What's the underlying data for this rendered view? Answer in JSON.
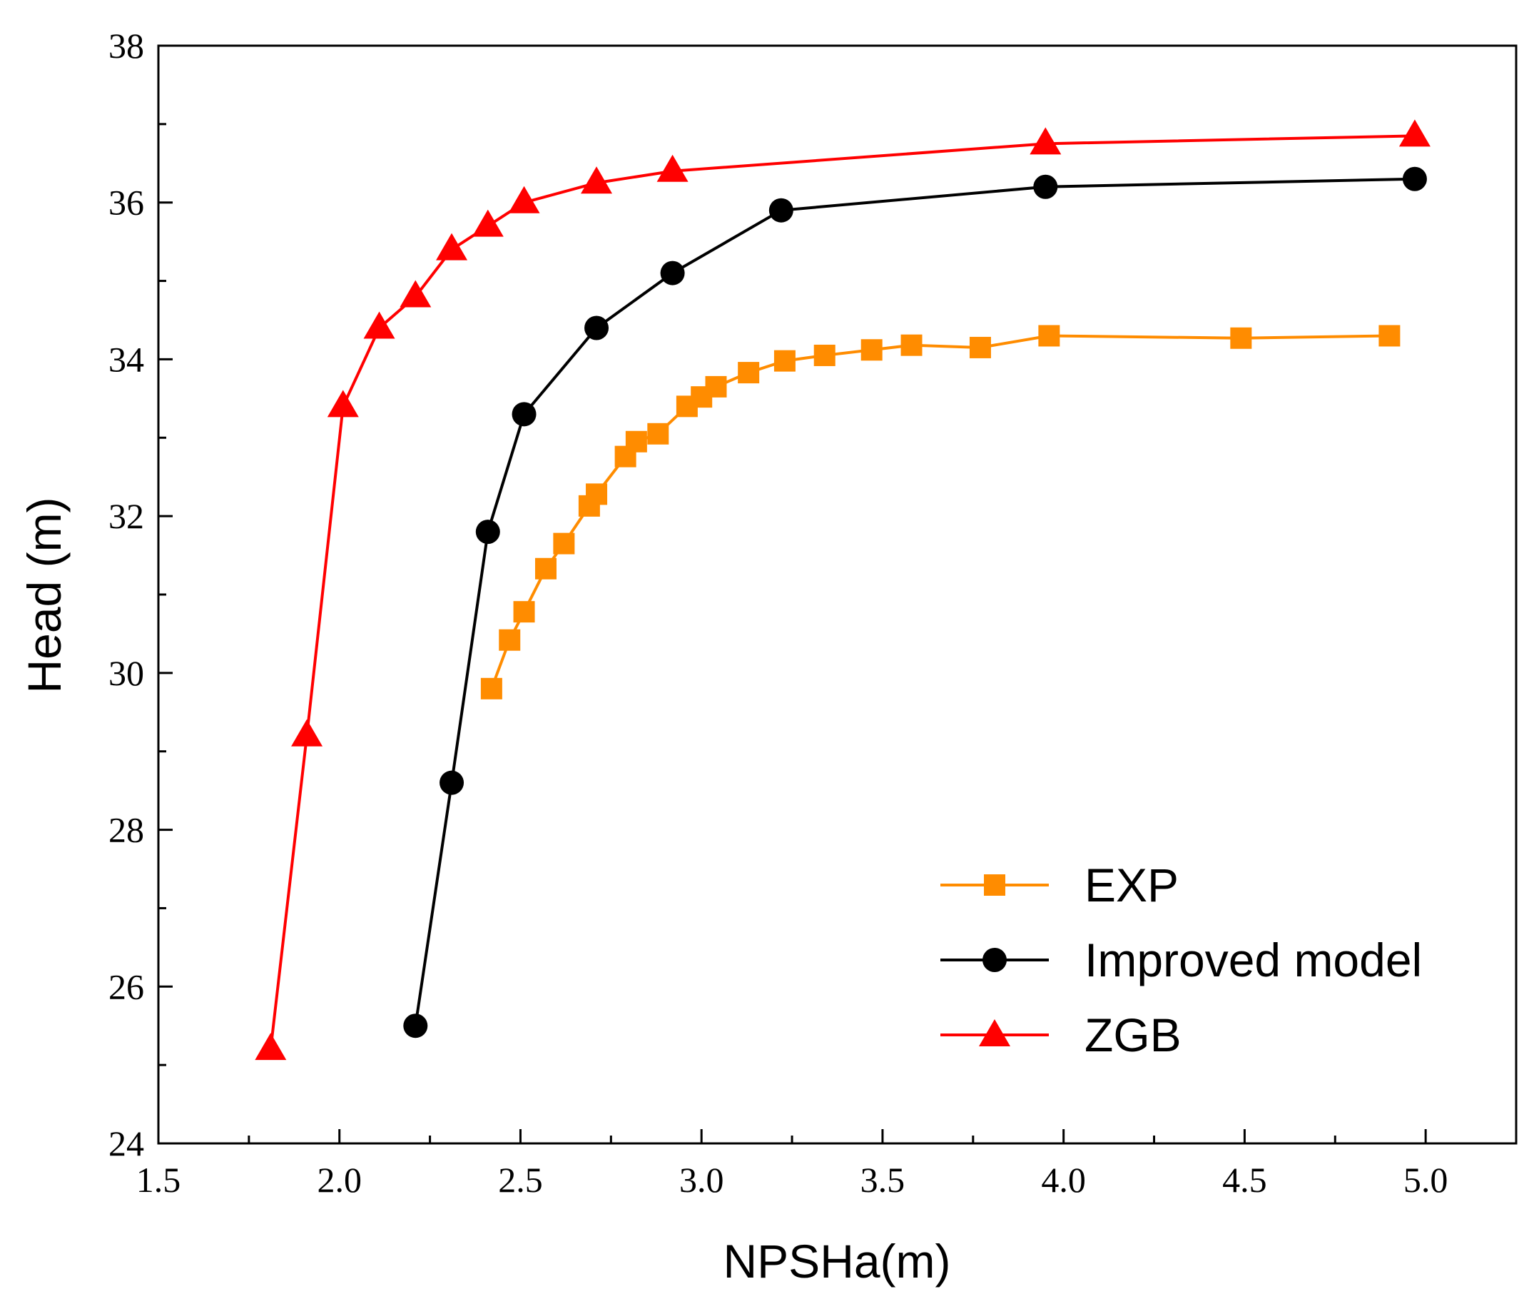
{
  "chart_data": {
    "type": "line",
    "title": "",
    "xlabel": "NPSHa(m)",
    "ylabel": "Head (m)",
    "xlim": [
      1.5,
      5.25
    ],
    "ylim": [
      24,
      38
    ],
    "x_ticks": [
      1.5,
      2.0,
      2.5,
      3.0,
      3.5,
      4.0,
      4.5,
      5.0
    ],
    "x_tick_labels": [
      "1.5",
      "2.0",
      "2.5",
      "3.0",
      "3.5",
      "4.0",
      "4.5",
      "5.0"
    ],
    "y_ticks": [
      24,
      26,
      28,
      30,
      32,
      34,
      36,
      38
    ],
    "y_tick_labels": [
      "24",
      "26",
      "28",
      "30",
      "32",
      "34",
      "36",
      "38"
    ],
    "grid": false,
    "legend_position": "bottom-right",
    "series": [
      {
        "name": "EXP",
        "color": "#FF8C00",
        "marker": "square",
        "x": [
          2.42,
          2.47,
          2.51,
          2.57,
          2.62,
          2.69,
          2.71,
          2.79,
          2.82,
          2.88,
          2.96,
          3.0,
          3.04,
          3.13,
          3.23,
          3.34,
          3.47,
          3.58,
          3.77,
          3.96,
          4.49,
          4.9
        ],
        "y": [
          29.8,
          30.42,
          30.78,
          31.33,
          31.65,
          32.13,
          32.28,
          32.76,
          32.95,
          33.05,
          33.4,
          33.52,
          33.65,
          33.83,
          33.98,
          34.05,
          34.12,
          34.18,
          34.15,
          34.3,
          34.27,
          34.3
        ]
      },
      {
        "name": "Improved model",
        "color": "#000000",
        "marker": "circle",
        "x": [
          2.21,
          2.31,
          2.41,
          2.51,
          2.71,
          2.92,
          3.22,
          3.95,
          4.97
        ],
        "y": [
          25.5,
          28.6,
          31.8,
          33.3,
          34.4,
          35.1,
          35.9,
          36.2,
          36.3
        ]
      },
      {
        "name": "ZGB",
        "color": "#FF0000",
        "marker": "triangle",
        "x": [
          1.81,
          1.91,
          2.01,
          2.11,
          2.21,
          2.31,
          2.41,
          2.51,
          2.71,
          2.92,
          3.95,
          4.97
        ],
        "y": [
          25.2,
          29.2,
          33.4,
          34.4,
          34.8,
          35.4,
          35.7,
          36.0,
          36.25,
          36.4,
          36.75,
          36.85
        ]
      }
    ]
  }
}
